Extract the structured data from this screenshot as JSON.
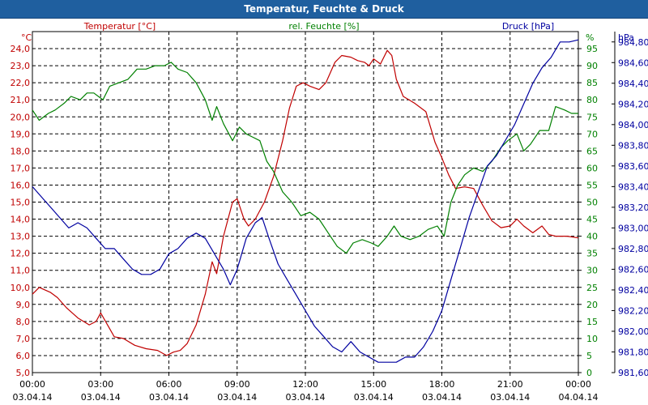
{
  "window": {
    "title": "Temperatur, Feuchte & Druck"
  },
  "chart_data": {
    "type": "line",
    "title": "Temperatur, Feuchte & Druck",
    "x_tick_labels": [
      {
        "time": "00:00",
        "date": "03.04.14"
      },
      {
        "time": "03:00",
        "date": "03.04.14"
      },
      {
        "time": "06:00",
        "date": "03.04.14"
      },
      {
        "time": "09:00",
        "date": "03.04.14"
      },
      {
        "time": "12:00",
        "date": "03.04.14"
      },
      {
        "time": "15:00",
        "date": "03.04.14"
      },
      {
        "time": "18:00",
        "date": "03.04.14"
      },
      {
        "time": "21:00",
        "date": "03.04.14"
      },
      {
        "time": "00:00",
        "date": "04.04.14"
      }
    ],
    "x_range_hours": [
      0,
      24
    ],
    "axes": {
      "temperature": {
        "unit_label": "°C",
        "legend": "Temperatur [°C]",
        "color": "#c00000",
        "range": [
          5,
          25
        ],
        "ticks": [
          "5,0",
          "6,0",
          "7,0",
          "8,0",
          "9,0",
          "10,0",
          "11,0",
          "12,0",
          "13,0",
          "14,0",
          "15,0",
          "16,0",
          "17,0",
          "18,0",
          "19,0",
          "20,0",
          "21,0",
          "22,0",
          "23,0",
          "24,0"
        ]
      },
      "humidity": {
        "unit_label": "%",
        "legend": "rel. Feuchte [%]",
        "color": "#008000",
        "range": [
          0,
          100
        ],
        "ticks": [
          "0",
          "5",
          "10",
          "15",
          "20",
          "25",
          "30",
          "35",
          "40",
          "45",
          "50",
          "55",
          "60",
          "65",
          "70",
          "75",
          "80",
          "85",
          "90",
          "95"
        ]
      },
      "pressure": {
        "unit_label": "hPa",
        "legend": "Druck [hPa]",
        "color": "#0000a0",
        "range": [
          981.6,
          984.9
        ],
        "ticks": [
          "981,60",
          "981,80",
          "982,00",
          "982,20",
          "982,40",
          "982,60",
          "982,80",
          "983,00",
          "983,20",
          "983,40",
          "983,60",
          "983,80",
          "984,00",
          "984,20",
          "984,40",
          "984,60",
          "984,80"
        ]
      }
    },
    "series": [
      {
        "name": "Temperatur [°C]",
        "axis": "temperature",
        "points": [
          [
            0,
            9.6
          ],
          [
            0.3,
            10.0
          ],
          [
            0.8,
            9.7
          ],
          [
            1.1,
            9.4
          ],
          [
            1.5,
            8.8
          ],
          [
            2.0,
            8.2
          ],
          [
            2.5,
            7.8
          ],
          [
            2.8,
            8.0
          ],
          [
            3.0,
            8.5
          ],
          [
            3.3,
            7.8
          ],
          [
            3.6,
            7.1
          ],
          [
            4.0,
            7.0
          ],
          [
            4.5,
            6.6
          ],
          [
            5.0,
            6.4
          ],
          [
            5.5,
            6.3
          ],
          [
            5.9,
            6.0
          ],
          [
            6.2,
            6.2
          ],
          [
            6.5,
            6.3
          ],
          [
            6.8,
            6.7
          ],
          [
            7.2,
            7.8
          ],
          [
            7.6,
            9.6
          ],
          [
            7.9,
            11.5
          ],
          [
            8.1,
            10.8
          ],
          [
            8.4,
            13.0
          ],
          [
            8.8,
            15.0
          ],
          [
            9.0,
            15.2
          ],
          [
            9.3,
            14.0
          ],
          [
            9.5,
            13.6
          ],
          [
            9.8,
            14.0
          ],
          [
            10.2,
            15.0
          ],
          [
            10.6,
            16.5
          ],
          [
            11.0,
            18.6
          ],
          [
            11.3,
            20.5
          ],
          [
            11.6,
            21.8
          ],
          [
            11.9,
            22.0
          ],
          [
            12.2,
            21.8
          ],
          [
            12.6,
            21.6
          ],
          [
            12.9,
            22.0
          ],
          [
            13.3,
            23.2
          ],
          [
            13.6,
            23.6
          ],
          [
            14.0,
            23.5
          ],
          [
            14.3,
            23.3
          ],
          [
            14.6,
            23.2
          ],
          [
            14.8,
            23.0
          ],
          [
            15.0,
            23.4
          ],
          [
            15.3,
            23.1
          ],
          [
            15.6,
            23.9
          ],
          [
            15.8,
            23.6
          ],
          [
            16.0,
            22.2
          ],
          [
            16.3,
            21.2
          ],
          [
            16.8,
            20.8
          ],
          [
            17.3,
            20.3
          ],
          [
            17.7,
            18.5
          ],
          [
            18.0,
            17.6
          ],
          [
            18.3,
            16.6
          ],
          [
            18.6,
            15.8
          ],
          [
            19.0,
            15.9
          ],
          [
            19.4,
            15.8
          ],
          [
            19.8,
            14.8
          ],
          [
            20.2,
            13.9
          ],
          [
            20.6,
            13.5
          ],
          [
            21.0,
            13.6
          ],
          [
            21.3,
            14.0
          ],
          [
            21.6,
            13.6
          ],
          [
            22.0,
            13.2
          ],
          [
            22.4,
            13.6
          ],
          [
            22.7,
            13.1
          ],
          [
            23.0,
            13.0
          ],
          [
            23.5,
            13.0
          ],
          [
            24.0,
            12.9
          ]
        ]
      },
      {
        "name": "rel. Feuchte [%]",
        "axis": "humidity",
        "points": [
          [
            0,
            77
          ],
          [
            0.3,
            74
          ],
          [
            0.7,
            76
          ],
          [
            1.0,
            77
          ],
          [
            1.4,
            79
          ],
          [
            1.7,
            81
          ],
          [
            2.1,
            80
          ],
          [
            2.4,
            82
          ],
          [
            2.7,
            82
          ],
          [
            2.9,
            81
          ],
          [
            3.1,
            80
          ],
          [
            3.4,
            84
          ],
          [
            3.8,
            85
          ],
          [
            4.2,
            86
          ],
          [
            4.6,
            89
          ],
          [
            5.0,
            89
          ],
          [
            5.4,
            90
          ],
          [
            5.8,
            90
          ],
          [
            6.1,
            91
          ],
          [
            6.4,
            89
          ],
          [
            6.8,
            88
          ],
          [
            7.2,
            85
          ],
          [
            7.6,
            80
          ],
          [
            7.9,
            74
          ],
          [
            8.1,
            78
          ],
          [
            8.4,
            73
          ],
          [
            8.8,
            68
          ],
          [
            9.1,
            72
          ],
          [
            9.4,
            70
          ],
          [
            9.7,
            69
          ],
          [
            10.0,
            68
          ],
          [
            10.3,
            62
          ],
          [
            10.6,
            59
          ],
          [
            11.0,
            53
          ],
          [
            11.4,
            50
          ],
          [
            11.8,
            46
          ],
          [
            12.2,
            47
          ],
          [
            12.6,
            45
          ],
          [
            13.0,
            41
          ],
          [
            13.4,
            37
          ],
          [
            13.8,
            35
          ],
          [
            14.1,
            38
          ],
          [
            14.5,
            39
          ],
          [
            14.9,
            38
          ],
          [
            15.2,
            37
          ],
          [
            15.6,
            40
          ],
          [
            15.9,
            43
          ],
          [
            16.2,
            40
          ],
          [
            16.6,
            39
          ],
          [
            17.0,
            40
          ],
          [
            17.4,
            42
          ],
          [
            17.8,
            43
          ],
          [
            18.1,
            40
          ],
          [
            18.4,
            50
          ],
          [
            18.7,
            55
          ],
          [
            19.0,
            58
          ],
          [
            19.4,
            60
          ],
          [
            19.8,
            59
          ],
          [
            20.2,
            62
          ],
          [
            20.6,
            66
          ],
          [
            20.9,
            68
          ],
          [
            21.3,
            70
          ],
          [
            21.6,
            65
          ],
          [
            21.9,
            67
          ],
          [
            22.3,
            71
          ],
          [
            22.7,
            71
          ],
          [
            23.0,
            78
          ],
          [
            23.4,
            77
          ],
          [
            23.7,
            76
          ],
          [
            24.0,
            76
          ]
        ]
      },
      {
        "name": "Druck [hPa]",
        "axis": "pressure",
        "points": [
          [
            0,
            983.4
          ],
          [
            0.4,
            983.3
          ],
          [
            0.8,
            983.2
          ],
          [
            1.2,
            983.1
          ],
          [
            1.6,
            983.0
          ],
          [
            2.0,
            983.05
          ],
          [
            2.4,
            983.0
          ],
          [
            2.8,
            982.9
          ],
          [
            3.2,
            982.8
          ],
          [
            3.6,
            982.8
          ],
          [
            4.0,
            982.7
          ],
          [
            4.4,
            982.6
          ],
          [
            4.8,
            982.55
          ],
          [
            5.2,
            982.55
          ],
          [
            5.6,
            982.6
          ],
          [
            6.0,
            982.75
          ],
          [
            6.4,
            982.8
          ],
          [
            6.8,
            982.9
          ],
          [
            7.2,
            982.95
          ],
          [
            7.6,
            982.9
          ],
          [
            8.0,
            982.75
          ],
          [
            8.4,
            982.6
          ],
          [
            8.7,
            982.45
          ],
          [
            9.0,
            982.6
          ],
          [
            9.4,
            982.9
          ],
          [
            9.8,
            983.05
          ],
          [
            10.1,
            983.1
          ],
          [
            10.4,
            982.9
          ],
          [
            10.8,
            982.65
          ],
          [
            11.2,
            982.5
          ],
          [
            11.6,
            982.35
          ],
          [
            12.0,
            982.2
          ],
          [
            12.4,
            982.05
          ],
          [
            12.8,
            981.95
          ],
          [
            13.2,
            981.85
          ],
          [
            13.6,
            981.8
          ],
          [
            14.0,
            981.9
          ],
          [
            14.4,
            981.8
          ],
          [
            14.8,
            981.75
          ],
          [
            15.2,
            981.7
          ],
          [
            15.6,
            981.7
          ],
          [
            16.0,
            981.7
          ],
          [
            16.4,
            981.75
          ],
          [
            16.8,
            981.75
          ],
          [
            17.2,
            981.85
          ],
          [
            17.6,
            982.0
          ],
          [
            18.0,
            982.2
          ],
          [
            18.4,
            982.5
          ],
          [
            18.8,
            982.8
          ],
          [
            19.2,
            983.1
          ],
          [
            19.6,
            983.35
          ],
          [
            20.0,
            983.6
          ],
          [
            20.4,
            983.7
          ],
          [
            20.8,
            983.85
          ],
          [
            21.2,
            984.0
          ],
          [
            21.6,
            984.2
          ],
          [
            22.0,
            984.4
          ],
          [
            22.4,
            984.55
          ],
          [
            22.8,
            984.65
          ],
          [
            23.2,
            984.8
          ],
          [
            23.6,
            984.8
          ],
          [
            24.0,
            984.82
          ]
        ]
      }
    ],
    "grid": true,
    "legend": "top"
  }
}
